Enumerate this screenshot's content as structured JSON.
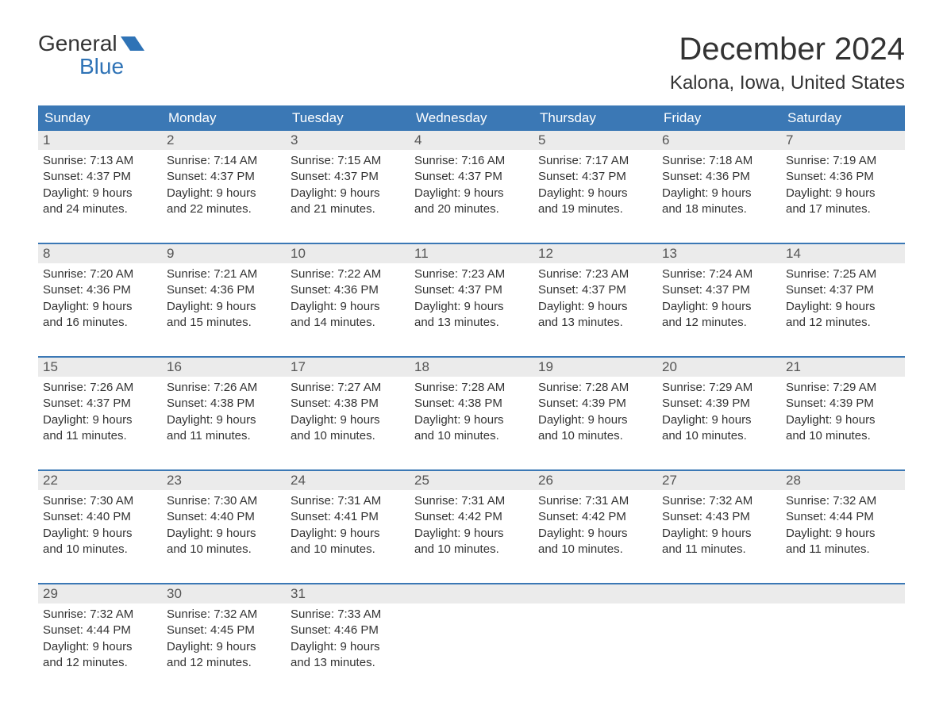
{
  "brand": {
    "word1": "General",
    "word2": "Blue",
    "accent": "#2f73b6"
  },
  "title": "December 2024",
  "location": "Kalona, Iowa, United States",
  "colors": {
    "header_bg": "#3b78b5",
    "header_text": "#ffffff",
    "daynum_bg": "#ebebeb",
    "daynum_text": "#555555",
    "body_text": "#333333",
    "week_border": "#3b78b5",
    "page_bg": "#ffffff"
  },
  "day_names": [
    "Sunday",
    "Monday",
    "Tuesday",
    "Wednesday",
    "Thursday",
    "Friday",
    "Saturday"
  ],
  "weeks": [
    [
      {
        "n": "1",
        "sr": "7:13 AM",
        "ss": "4:37 PM",
        "d1": "Daylight: 9 hours",
        "d2": "and 24 minutes."
      },
      {
        "n": "2",
        "sr": "7:14 AM",
        "ss": "4:37 PM",
        "d1": "Daylight: 9 hours",
        "d2": "and 22 minutes."
      },
      {
        "n": "3",
        "sr": "7:15 AM",
        "ss": "4:37 PM",
        "d1": "Daylight: 9 hours",
        "d2": "and 21 minutes."
      },
      {
        "n": "4",
        "sr": "7:16 AM",
        "ss": "4:37 PM",
        "d1": "Daylight: 9 hours",
        "d2": "and 20 minutes."
      },
      {
        "n": "5",
        "sr": "7:17 AM",
        "ss": "4:37 PM",
        "d1": "Daylight: 9 hours",
        "d2": "and 19 minutes."
      },
      {
        "n": "6",
        "sr": "7:18 AM",
        "ss": "4:36 PM",
        "d1": "Daylight: 9 hours",
        "d2": "and 18 minutes."
      },
      {
        "n": "7",
        "sr": "7:19 AM",
        "ss": "4:36 PM",
        "d1": "Daylight: 9 hours",
        "d2": "and 17 minutes."
      }
    ],
    [
      {
        "n": "8",
        "sr": "7:20 AM",
        "ss": "4:36 PM",
        "d1": "Daylight: 9 hours",
        "d2": "and 16 minutes."
      },
      {
        "n": "9",
        "sr": "7:21 AM",
        "ss": "4:36 PM",
        "d1": "Daylight: 9 hours",
        "d2": "and 15 minutes."
      },
      {
        "n": "10",
        "sr": "7:22 AM",
        "ss": "4:36 PM",
        "d1": "Daylight: 9 hours",
        "d2": "and 14 minutes."
      },
      {
        "n": "11",
        "sr": "7:23 AM",
        "ss": "4:37 PM",
        "d1": "Daylight: 9 hours",
        "d2": "and 13 minutes."
      },
      {
        "n": "12",
        "sr": "7:23 AM",
        "ss": "4:37 PM",
        "d1": "Daylight: 9 hours",
        "d2": "and 13 minutes."
      },
      {
        "n": "13",
        "sr": "7:24 AM",
        "ss": "4:37 PM",
        "d1": "Daylight: 9 hours",
        "d2": "and 12 minutes."
      },
      {
        "n": "14",
        "sr": "7:25 AM",
        "ss": "4:37 PM",
        "d1": "Daylight: 9 hours",
        "d2": "and 12 minutes."
      }
    ],
    [
      {
        "n": "15",
        "sr": "7:26 AM",
        "ss": "4:37 PM",
        "d1": "Daylight: 9 hours",
        "d2": "and 11 minutes."
      },
      {
        "n": "16",
        "sr": "7:26 AM",
        "ss": "4:38 PM",
        "d1": "Daylight: 9 hours",
        "d2": "and 11 minutes."
      },
      {
        "n": "17",
        "sr": "7:27 AM",
        "ss": "4:38 PM",
        "d1": "Daylight: 9 hours",
        "d2": "and 10 minutes."
      },
      {
        "n": "18",
        "sr": "7:28 AM",
        "ss": "4:38 PM",
        "d1": "Daylight: 9 hours",
        "d2": "and 10 minutes."
      },
      {
        "n": "19",
        "sr": "7:28 AM",
        "ss": "4:39 PM",
        "d1": "Daylight: 9 hours",
        "d2": "and 10 minutes."
      },
      {
        "n": "20",
        "sr": "7:29 AM",
        "ss": "4:39 PM",
        "d1": "Daylight: 9 hours",
        "d2": "and 10 minutes."
      },
      {
        "n": "21",
        "sr": "7:29 AM",
        "ss": "4:39 PM",
        "d1": "Daylight: 9 hours",
        "d2": "and 10 minutes."
      }
    ],
    [
      {
        "n": "22",
        "sr": "7:30 AM",
        "ss": "4:40 PM",
        "d1": "Daylight: 9 hours",
        "d2": "and 10 minutes."
      },
      {
        "n": "23",
        "sr": "7:30 AM",
        "ss": "4:40 PM",
        "d1": "Daylight: 9 hours",
        "d2": "and 10 minutes."
      },
      {
        "n": "24",
        "sr": "7:31 AM",
        "ss": "4:41 PM",
        "d1": "Daylight: 9 hours",
        "d2": "and 10 minutes."
      },
      {
        "n": "25",
        "sr": "7:31 AM",
        "ss": "4:42 PM",
        "d1": "Daylight: 9 hours",
        "d2": "and 10 minutes."
      },
      {
        "n": "26",
        "sr": "7:31 AM",
        "ss": "4:42 PM",
        "d1": "Daylight: 9 hours",
        "d2": "and 10 minutes."
      },
      {
        "n": "27",
        "sr": "7:32 AM",
        "ss": "4:43 PM",
        "d1": "Daylight: 9 hours",
        "d2": "and 11 minutes."
      },
      {
        "n": "28",
        "sr": "7:32 AM",
        "ss": "4:44 PM",
        "d1": "Daylight: 9 hours",
        "d2": "and 11 minutes."
      }
    ],
    [
      {
        "n": "29",
        "sr": "7:32 AM",
        "ss": "4:44 PM",
        "d1": "Daylight: 9 hours",
        "d2": "and 12 minutes."
      },
      {
        "n": "30",
        "sr": "7:32 AM",
        "ss": "4:45 PM",
        "d1": "Daylight: 9 hours",
        "d2": "and 12 minutes."
      },
      {
        "n": "31",
        "sr": "7:33 AM",
        "ss": "4:46 PM",
        "d1": "Daylight: 9 hours",
        "d2": "and 13 minutes."
      },
      null,
      null,
      null,
      null
    ]
  ],
  "labels": {
    "sunrise": "Sunrise:",
    "sunset": "Sunset:"
  }
}
